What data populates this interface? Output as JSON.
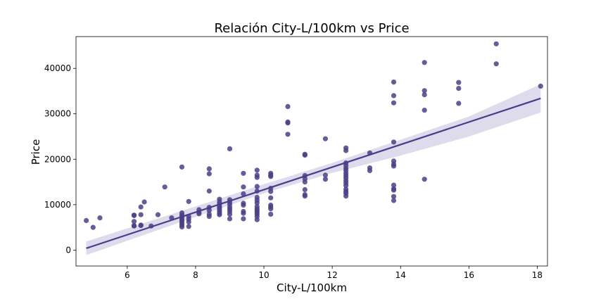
{
  "chart_data": {
    "type": "scatter",
    "title": "Relación City-L/100km vs Price",
    "xlabel": "City-L/100km",
    "ylabel": "Price",
    "xlim": [
      4.5,
      18.3
    ],
    "ylim": [
      -3500,
      47000
    ],
    "xticks": [
      6,
      8,
      10,
      12,
      14,
      16,
      18
    ],
    "yticks": [
      0,
      10000,
      20000,
      30000,
      40000
    ],
    "grid": false,
    "point_color": "#4b3f86",
    "line_color": "#483d8b",
    "band_color": "#c8c4e0",
    "regression": {
      "x": [
        4.8,
        18.1
      ],
      "y": [
        400,
        33400
      ]
    },
    "confidence_band": {
      "x": [
        4.8,
        8,
        10,
        12,
        14,
        16,
        18.1
      ],
      "lower": [
        -1100,
        7300,
        12500,
        17000,
        20800,
        25000,
        30300
      ],
      "upper": [
        1900,
        9600,
        14500,
        19200,
        24300,
        29400,
        36500
      ]
    },
    "points": [
      [
        4.8,
        6500
      ],
      [
        5.0,
        5000
      ],
      [
        5.2,
        7100
      ],
      [
        6.2,
        7700
      ],
      [
        6.2,
        7600
      ],
      [
        6.2,
        6300
      ],
      [
        6.2,
        5400
      ],
      [
        6.2,
        5300
      ],
      [
        6.4,
        9500
      ],
      [
        6.4,
        7800
      ],
      [
        6.4,
        5500
      ],
      [
        6.4,
        5400
      ],
      [
        6.5,
        10600
      ],
      [
        6.7,
        5300
      ],
      [
        6.9,
        7800
      ],
      [
        7.1,
        13900
      ],
      [
        7.3,
        7100
      ],
      [
        7.6,
        18300
      ],
      [
        7.6,
        8200
      ],
      [
        7.6,
        7700
      ],
      [
        7.6,
        7300
      ],
      [
        7.6,
        6900
      ],
      [
        7.6,
        6500
      ],
      [
        7.6,
        6200
      ],
      [
        7.6,
        5800
      ],
      [
        7.6,
        5500
      ],
      [
        7.6,
        5100
      ],
      [
        7.8,
        10700
      ],
      [
        7.8,
        7400
      ],
      [
        7.8,
        6800
      ],
      [
        7.8,
        6200
      ],
      [
        7.8,
        5200
      ],
      [
        8.1,
        8900
      ],
      [
        8.1,
        8300
      ],
      [
        8.1,
        8000
      ],
      [
        8.4,
        17900
      ],
      [
        8.4,
        16800
      ],
      [
        8.4,
        13000
      ],
      [
        8.4,
        9400
      ],
      [
        8.4,
        8700
      ],
      [
        8.4,
        7900
      ],
      [
        8.4,
        7400
      ],
      [
        8.7,
        11200
      ],
      [
        8.7,
        10600
      ],
      [
        8.7,
        10100
      ],
      [
        8.7,
        9600
      ],
      [
        8.7,
        9300
      ],
      [
        8.7,
        8900
      ],
      [
        8.7,
        8500
      ],
      [
        8.7,
        8100
      ],
      [
        8.7,
        7800
      ],
      [
        9.0,
        22300
      ],
      [
        9.0,
        11100
      ],
      [
        9.0,
        10600
      ],
      [
        9.0,
        10100
      ],
      [
        9.0,
        9500
      ],
      [
        9.0,
        9000
      ],
      [
        9.0,
        8500
      ],
      [
        9.0,
        7900
      ],
      [
        9.0,
        6900
      ],
      [
        9.4,
        16900
      ],
      [
        9.4,
        13900
      ],
      [
        9.4,
        12400
      ],
      [
        9.4,
        10300
      ],
      [
        9.4,
        9900
      ],
      [
        9.4,
        8500
      ],
      [
        9.4,
        8100
      ],
      [
        9.4,
        6900
      ],
      [
        9.8,
        17600
      ],
      [
        9.8,
        16500
      ],
      [
        9.8,
        16000
      ],
      [
        9.8,
        14000
      ],
      [
        9.8,
        13000
      ],
      [
        9.8,
        11600
      ],
      [
        9.8,
        11000
      ],
      [
        9.8,
        10400
      ],
      [
        9.8,
        9600
      ],
      [
        9.8,
        9100
      ],
      [
        9.8,
        8700
      ],
      [
        9.8,
        8300
      ],
      [
        9.8,
        7900
      ],
      [
        9.8,
        7400
      ],
      [
        9.8,
        6700
      ],
      [
        10.2,
        16900
      ],
      [
        10.2,
        16500
      ],
      [
        10.2,
        16200
      ],
      [
        10.2,
        13600
      ],
      [
        10.2,
        12900
      ],
      [
        10.2,
        11500
      ],
      [
        10.2,
        9900
      ],
      [
        10.2,
        9500
      ],
      [
        10.2,
        9100
      ],
      [
        10.2,
        7900
      ],
      [
        10.7,
        31600
      ],
      [
        10.7,
        28200
      ],
      [
        10.7,
        28000
      ],
      [
        10.7,
        25500
      ],
      [
        11.2,
        21100
      ],
      [
        11.2,
        20900
      ],
      [
        11.2,
        16400
      ],
      [
        11.2,
        15700
      ],
      [
        11.2,
        15000
      ],
      [
        11.2,
        13300
      ],
      [
        11.2,
        12200
      ],
      [
        11.2,
        11900
      ],
      [
        11.8,
        24500
      ],
      [
        11.8,
        16500
      ],
      [
        11.8,
        15600
      ],
      [
        12.4,
        22500
      ],
      [
        12.4,
        21900
      ],
      [
        12.4,
        19200
      ],
      [
        12.4,
        18600
      ],
      [
        12.4,
        18000
      ],
      [
        12.4,
        17500
      ],
      [
        12.4,
        16900
      ],
      [
        12.4,
        16400
      ],
      [
        12.4,
        15900
      ],
      [
        12.4,
        15300
      ],
      [
        12.4,
        14800
      ],
      [
        12.4,
        14200
      ],
      [
        12.4,
        13400
      ],
      [
        12.4,
        12900
      ],
      [
        12.4,
        12500
      ],
      [
        12.4,
        11900
      ],
      [
        13.1,
        21400
      ],
      [
        13.1,
        18100
      ],
      [
        13.1,
        17500
      ],
      [
        13.8,
        37000
      ],
      [
        13.8,
        34000
      ],
      [
        13.8,
        32400
      ],
      [
        13.8,
        23800
      ],
      [
        13.8,
        19600
      ],
      [
        13.8,
        18900
      ],
      [
        13.8,
        18500
      ],
      [
        13.8,
        14300
      ],
      [
        13.8,
        13500
      ],
      [
        13.8,
        13200
      ],
      [
        13.8,
        11800
      ],
      [
        13.8,
        10900
      ],
      [
        14.7,
        41300
      ],
      [
        14.7,
        35100
      ],
      [
        14.7,
        34200
      ],
      [
        14.7,
        30800
      ],
      [
        14.7,
        15600
      ],
      [
        15.7,
        36900
      ],
      [
        15.7,
        35600
      ],
      [
        15.7,
        32300
      ],
      [
        16.8,
        45400
      ],
      [
        16.8,
        41000
      ],
      [
        18.1,
        36100
      ]
    ]
  }
}
